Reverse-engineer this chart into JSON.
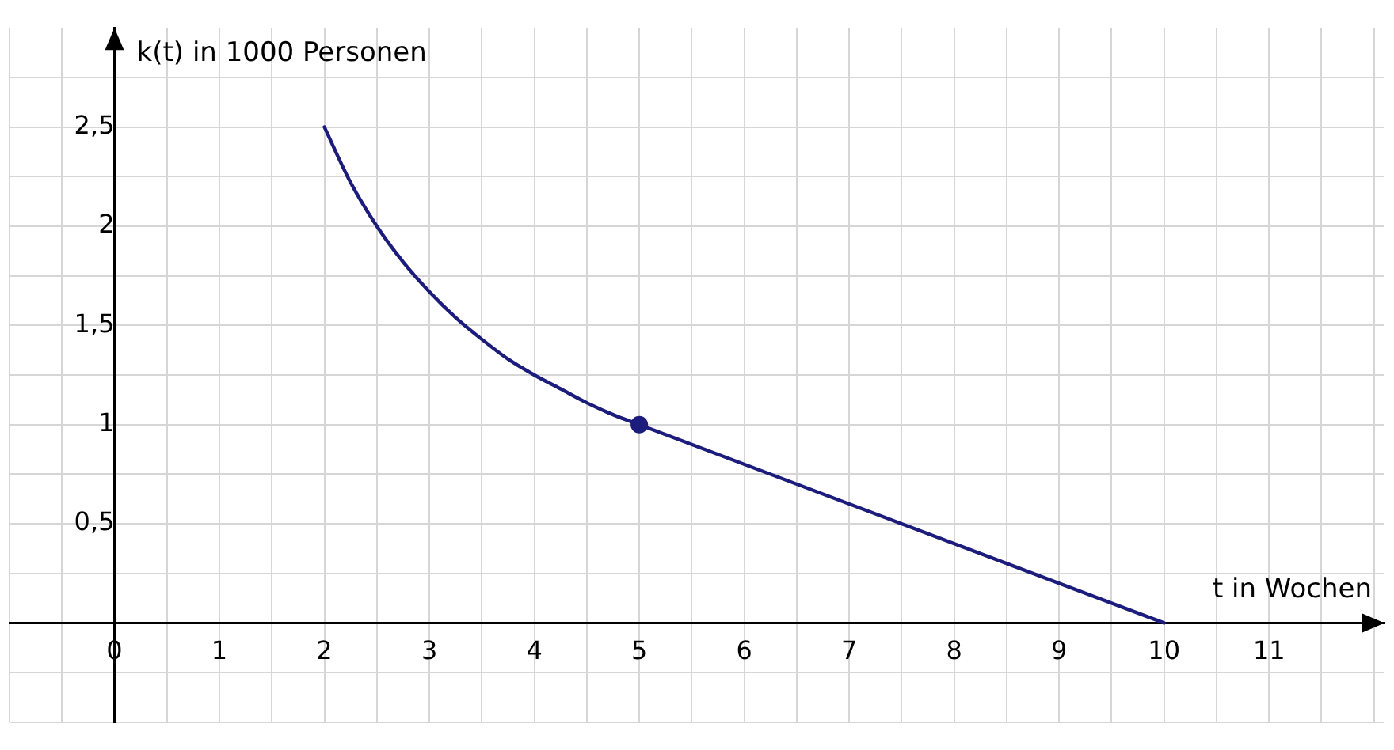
{
  "chart_data": {
    "type": "line",
    "xlabel": "t in Wochen",
    "ylabel": "k(t) in 1000 Personen",
    "xlim": [
      -1,
      12.1
    ],
    "ylim": [
      -0.5,
      3
    ],
    "xticks": [
      {
        "value": -1,
        "label": null
      },
      {
        "value": -0.5,
        "label": null
      },
      {
        "value": 0,
        "label": "0"
      },
      {
        "value": 0.5,
        "label": null
      },
      {
        "value": 1,
        "label": "1"
      },
      {
        "value": 1.5,
        "label": null
      },
      {
        "value": 2,
        "label": "2"
      },
      {
        "value": 2.5,
        "label": null
      },
      {
        "value": 3,
        "label": "3"
      },
      {
        "value": 3.5,
        "label": null
      },
      {
        "value": 4,
        "label": "4"
      },
      {
        "value": 4.5,
        "label": null
      },
      {
        "value": 5,
        "label": "5"
      },
      {
        "value": 5.5,
        "label": null
      },
      {
        "value": 6,
        "label": "6"
      },
      {
        "value": 6.5,
        "label": null
      },
      {
        "value": 7,
        "label": "7"
      },
      {
        "value": 7.5,
        "label": null
      },
      {
        "value": 8,
        "label": "8"
      },
      {
        "value": 8.5,
        "label": null
      },
      {
        "value": 9,
        "label": "9"
      },
      {
        "value": 9.5,
        "label": null
      },
      {
        "value": 10,
        "label": "10"
      },
      {
        "value": 10.5,
        "label": null
      },
      {
        "value": 11,
        "label": "11"
      },
      {
        "value": 11.5,
        "label": null
      },
      {
        "value": 12,
        "label": null
      }
    ],
    "yticks": [
      {
        "value": -0.5,
        "label": null
      },
      {
        "value": -0.25,
        "label": null
      },
      {
        "value": 0.25,
        "label": null
      },
      {
        "value": 0.5,
        "label": "0,5"
      },
      {
        "value": 0.75,
        "label": null
      },
      {
        "value": 1,
        "label": "1"
      },
      {
        "value": 1.25,
        "label": null
      },
      {
        "value": 1.5,
        "label": "1,5"
      },
      {
        "value": 1.75,
        "label": null
      },
      {
        "value": 2,
        "label": "2"
      },
      {
        "value": 2.25,
        "label": null
      },
      {
        "value": 2.5,
        "label": "2,5"
      },
      {
        "value": 2.75,
        "label": null
      }
    ],
    "grid": true,
    "legend": false,
    "marker": "none",
    "line_style": "solid",
    "series": [
      {
        "color": "#1c1c7c",
        "x": [
          2,
          2.25,
          2.5,
          2.75,
          3,
          3.25,
          3.5,
          3.75,
          4,
          4.25,
          4.5,
          4.75,
          5,
          10
        ],
        "values": [
          2.5,
          2.22,
          2,
          1.82,
          1.67,
          1.54,
          1.43,
          1.33,
          1.25,
          1.18,
          1.11,
          1.05,
          1,
          0
        ]
      },
      {
        "type": "scatter",
        "marker": "circle",
        "color": "#1c1c7c",
        "x": [
          5
        ],
        "values": [
          1
        ]
      }
    ]
  }
}
